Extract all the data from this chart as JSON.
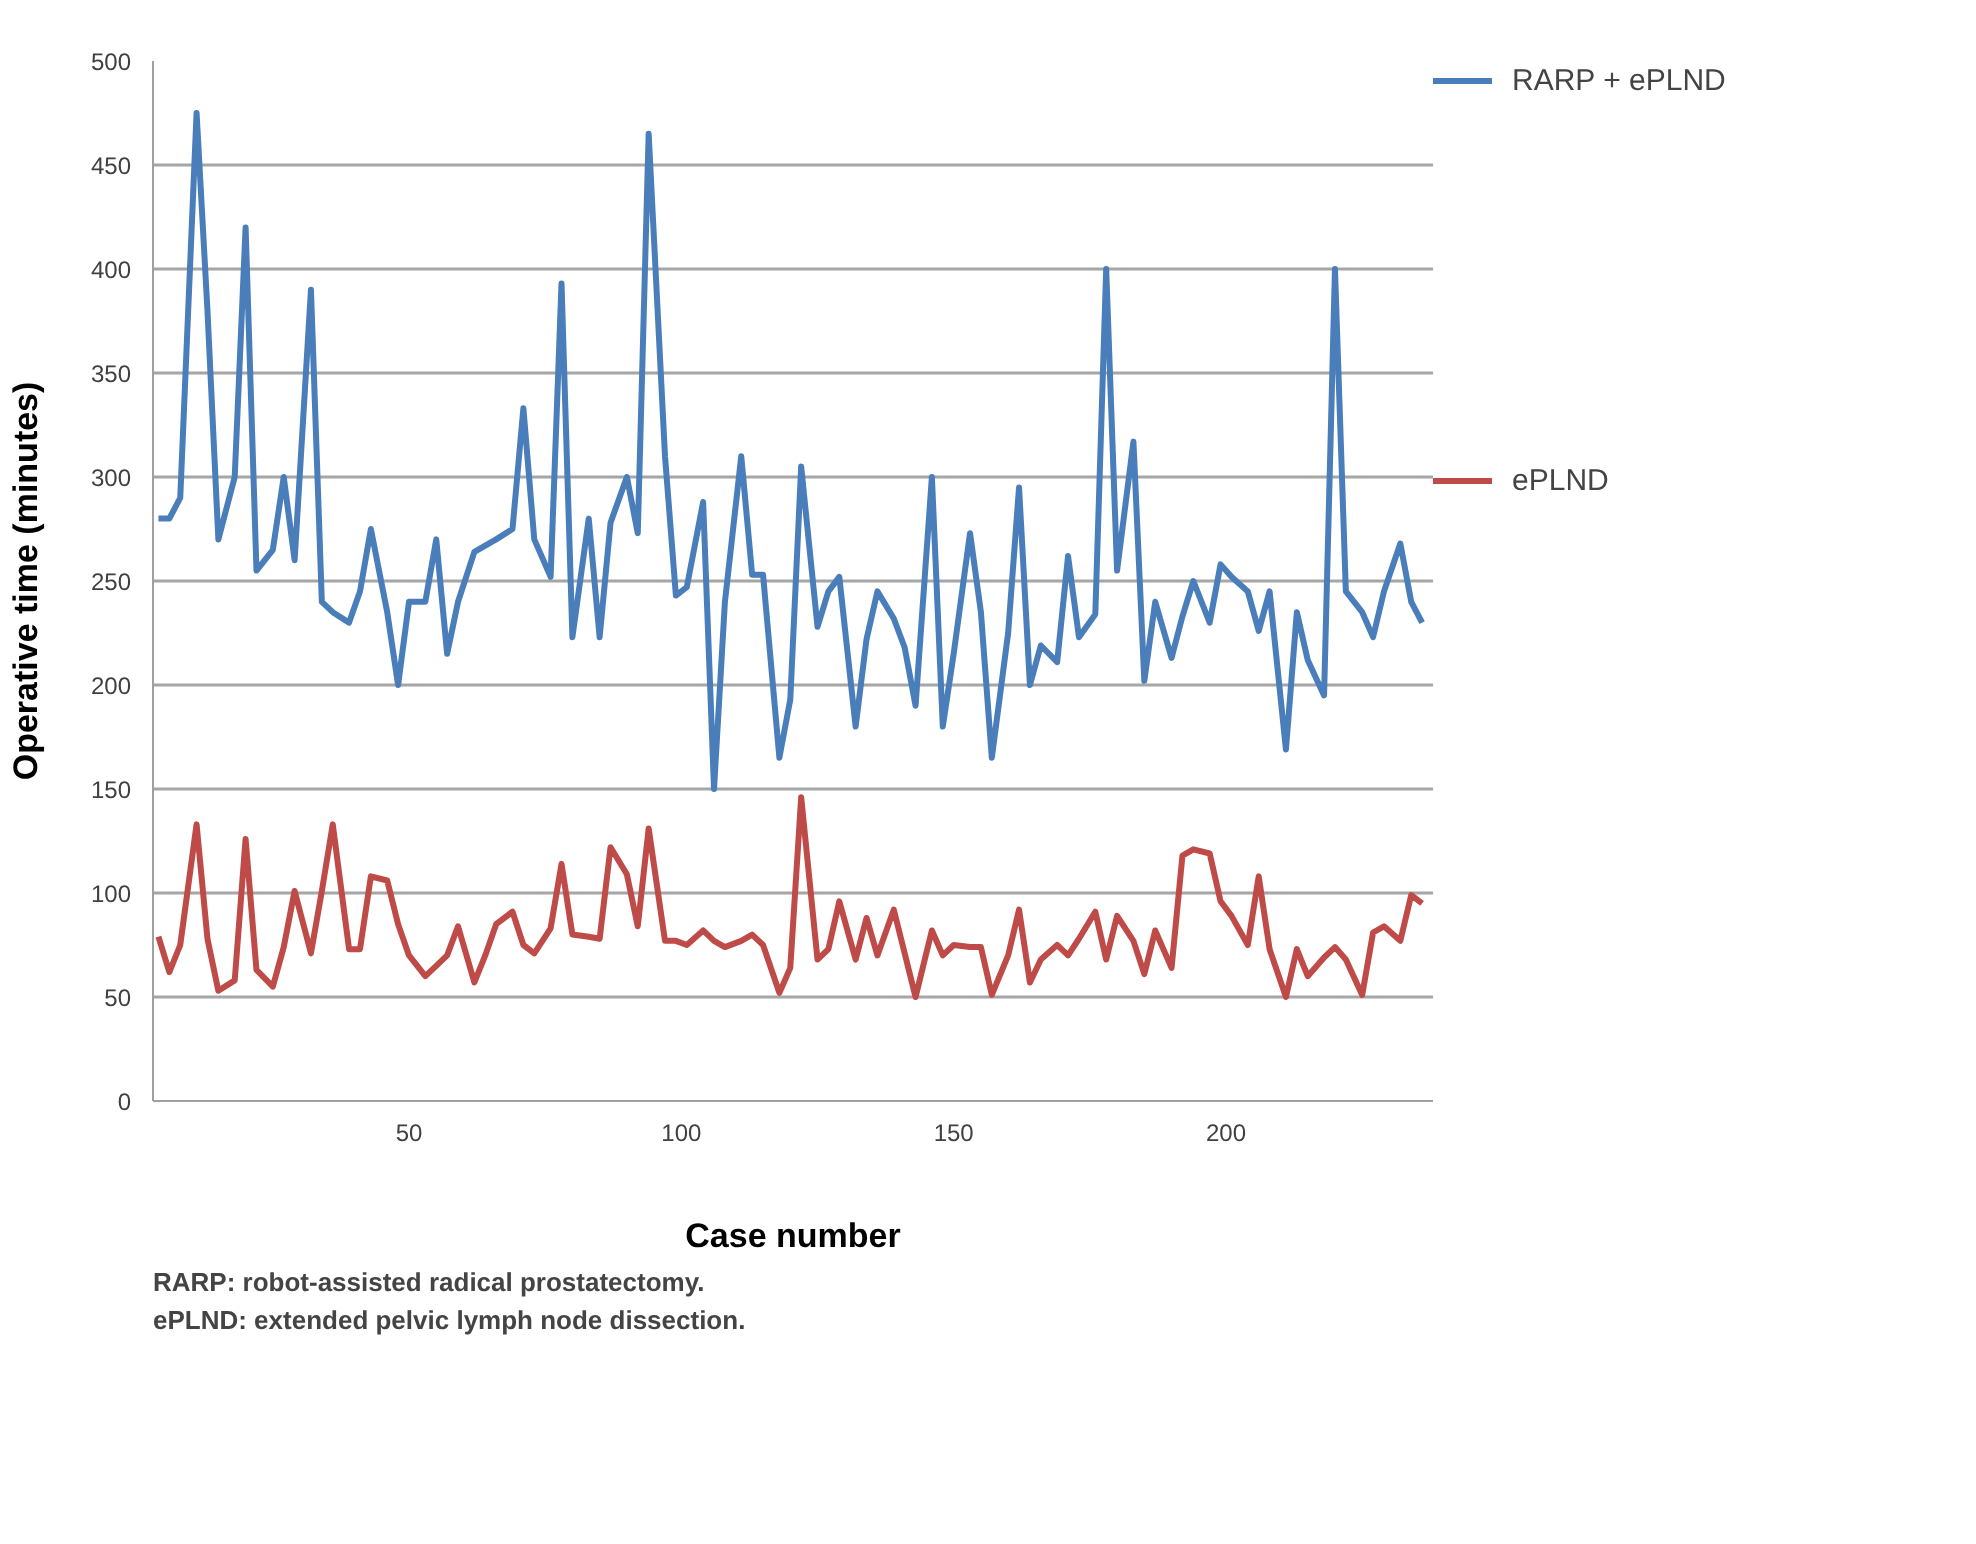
{
  "chart_data": {
    "type": "line",
    "xlabel": "Case number",
    "ylabel": "Operative time (minutes)",
    "x": [
      4,
      6,
      8,
      11,
      13,
      15,
      18,
      20,
      22,
      25,
      27,
      29,
      32,
      34,
      36,
      39,
      41,
      43,
      46,
      48,
      50,
      53,
      55,
      57,
      59,
      62,
      64,
      66,
      69,
      71,
      73,
      76,
      78,
      80,
      83,
      85,
      87,
      90,
      92,
      94,
      97,
      99,
      101,
      104,
      106,
      108,
      111,
      113,
      115,
      118,
      120,
      122,
      125,
      127,
      129,
      132,
      134,
      136,
      139,
      141,
      143,
      146,
      148,
      150,
      153,
      155,
      157,
      160,
      162,
      164,
      166,
      169,
      171,
      173,
      176,
      178,
      180,
      183,
      185,
      187,
      190,
      192,
      194,
      197,
      199,
      201,
      204,
      206,
      208,
      211,
      213,
      215,
      218,
      220,
      222,
      225,
      227,
      229,
      232,
      234,
      236
    ],
    "series": [
      {
        "name": "RARP + ePLND",
        "color": "#4a7ebb",
        "values": [
          280,
          280,
          290,
          475,
          380,
          270,
          300,
          420,
          255,
          265,
          300,
          260,
          390,
          240,
          235,
          230,
          245,
          275,
          235,
          200,
          240,
          240,
          270,
          215,
          240,
          264,
          267,
          270,
          275,
          333,
          270,
          252,
          393,
          223,
          280,
          223,
          278,
          300,
          273,
          465,
          310,
          243,
          247,
          288,
          150,
          240,
          310,
          253,
          253,
          165,
          193,
          305,
          228,
          245,
          252,
          180,
          222,
          245,
          232,
          218,
          190,
          300,
          180,
          215,
          273,
          235,
          165,
          225,
          295,
          200,
          219,
          211,
          262,
          223,
          234,
          400,
          255,
          317,
          202,
          240,
          213,
          233,
          250,
          230,
          258,
          252,
          245,
          226,
          245,
          169,
          235,
          212,
          195,
          400,
          245,
          235,
          223,
          245,
          268,
          240,
          230
        ]
      },
      {
        "name": "ePLND",
        "color": "#be4b48",
        "values": [
          79,
          62,
          75,
          133,
          78,
          53,
          58,
          126,
          63,
          55,
          74,
          101,
          71,
          101,
          133,
          73,
          73,
          108,
          106,
          85,
          70,
          60,
          65,
          70,
          84,
          57,
          70,
          85,
          91,
          75,
          71,
          83,
          114,
          80,
          79,
          78,
          122,
          109,
          84,
          131,
          77,
          77,
          75,
          82,
          77,
          74,
          77,
          80,
          75,
          52,
          64,
          146,
          68,
          73,
          96,
          68,
          88,
          70,
          92,
          71,
          50,
          82,
          70,
          75,
          74,
          74,
          51,
          70,
          92,
          57,
          68,
          75,
          70,
          78,
          91,
          68,
          89,
          77,
          61,
          82,
          64,
          118,
          121,
          119,
          96,
          89,
          75,
          108,
          73,
          50,
          73,
          60,
          69,
          74,
          68,
          51,
          81,
          84,
          77,
          99,
          95
        ]
      }
    ],
    "xlim": [
      3,
      238
    ],
    "xticks": [
      50,
      100,
      150,
      200
    ],
    "ylim": [
      0,
      500
    ],
    "yticks": [
      0,
      50,
      100,
      150,
      200,
      250,
      300,
      350,
      400,
      450,
      500
    ],
    "grid": "y",
    "legend": "right",
    "annotations": [
      "RARP: robot-assisted radical prostatectomy.",
      "ePLND: extended pelvic lymph node dissection."
    ]
  }
}
